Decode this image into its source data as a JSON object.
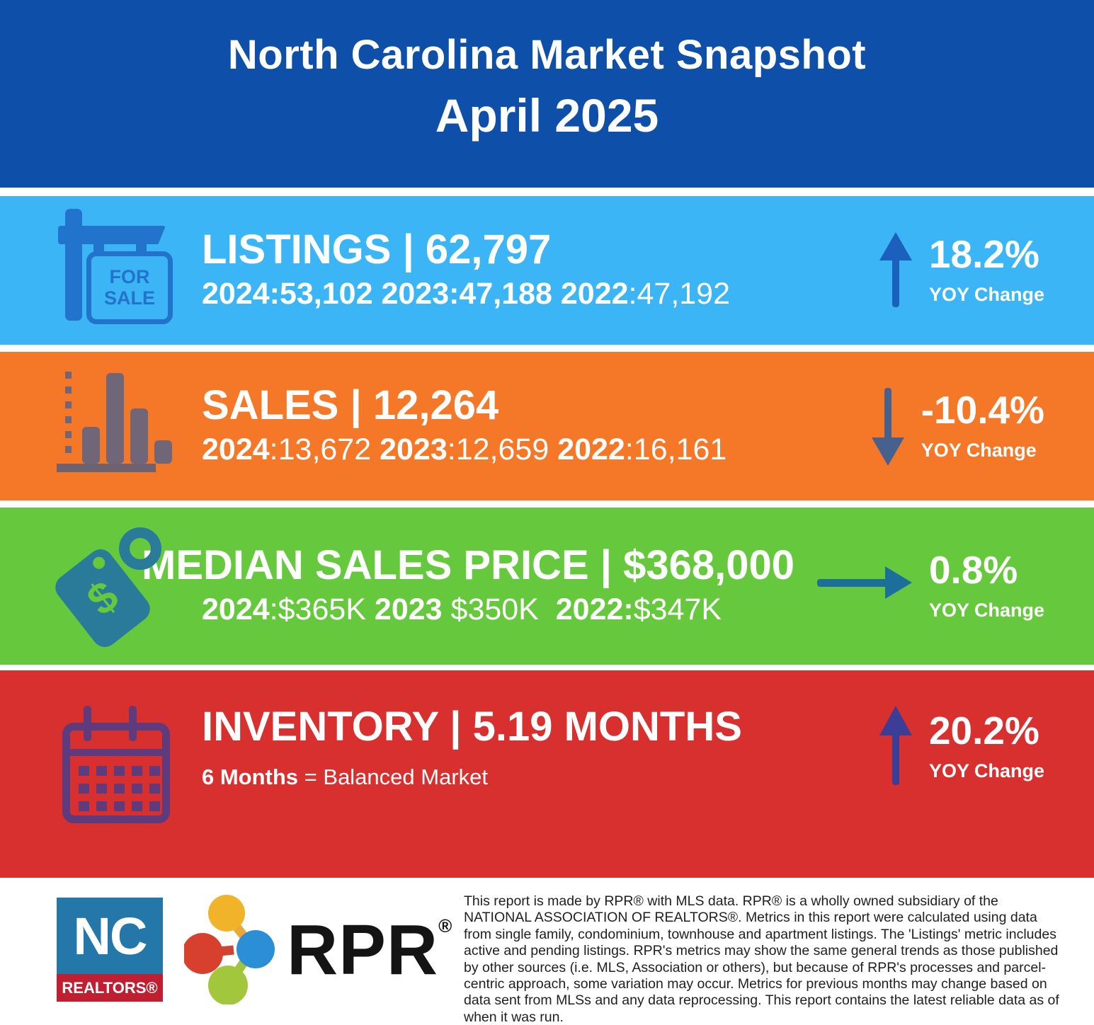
{
  "colors": {
    "header_bg": "#0e4fa9",
    "listings_bg": "#3cb5f6",
    "sales_bg": "#f57728",
    "median_bg": "#66c93d",
    "inventory_bg": "#d8302f",
    "listings_arrow": "#1c60bd",
    "sales_arrow": "#47618e",
    "median_arrow": "#1d6f9b",
    "inventory_arrow": "#3c3e96",
    "nc_logo_blue": "#2478a9",
    "nc_logo_red": "#c01f32"
  },
  "header": {
    "title": "North Carolina Market Snapshot",
    "subtitle": "April 2025"
  },
  "bands": [
    {
      "name": "Listings",
      "icon": "for-sale-sign",
      "icon_label": "FOR SALE",
      "title": "LISTINGS | 62,797",
      "history": [
        {
          "text": "2024:53,102 2023:47,188 2022",
          "bold": true
        },
        {
          "text": ":47,192",
          "bold": false
        }
      ],
      "yoy": {
        "value": "18.2%",
        "label": "YOY Change",
        "direction": "up"
      }
    },
    {
      "name": "Sales",
      "icon": "bar-chart",
      "title": "SALES | 12,264",
      "history": [
        {
          "text": "2024",
          "bold": true
        },
        {
          "text": ":13,672 ",
          "bold": false
        },
        {
          "text": "2023",
          "bold": true
        },
        {
          "text": ":12,659 ",
          "bold": false
        },
        {
          "text": "2022",
          "bold": true
        },
        {
          "text": ":16,161",
          "bold": false
        }
      ],
      "yoy": {
        "value": "-10.4%",
        "label": "YOY Change",
        "direction": "down"
      }
    },
    {
      "name": "Median Sales Price",
      "icon": "price-tag",
      "icon_label": "$",
      "title": "MEDIAN SALES PRICE | $368,000",
      "history": [
        {
          "text": "2024",
          "bold": true
        },
        {
          "text": ":$365K ",
          "bold": false
        },
        {
          "text": "2023",
          "bold": true
        },
        {
          "text": " $350K  ",
          "bold": false
        },
        {
          "text": "2022:",
          "bold": true
        },
        {
          "text": "$347K",
          "bold": false
        }
      ],
      "yoy": {
        "value": "0.8%",
        "label": "YOY Change",
        "direction": "right"
      }
    },
    {
      "name": "Inventory",
      "icon": "calendar",
      "title": "INVENTORY | 5.19 MONTHS",
      "history": [
        {
          "text": "6 Months",
          "bold": true
        },
        {
          "text": " = Balanced Market",
          "bold": false
        }
      ],
      "yoy": {
        "value": "20.2%",
        "label": "YOY Change",
        "direction": "up"
      }
    }
  ],
  "footer": {
    "nc_logo": {
      "top": "NC",
      "bottom": "REALTORS®"
    },
    "rpr_logo": {
      "text": "RPR",
      "registered": "®"
    },
    "disclaimer": "This report is made by RPR® with MLS data. RPR® is a wholly owned subsidiary of the NATIONAL ASSOCIATION OF REALTORS®. Metrics in this report were calculated using data from single family, condominium, townhouse and apartment listings. The 'Listings' metric includes active and pending listings. RPR's metrics may show the same general trends as those published by other sources (i.e. MLS, Association or others), but because of RPR's processes and parcel-centric approach, some variation may occur. Metrics for previous months may change based on data sent from MLSs and any data reprocessing. This report contains the latest reliable data as of when it was run."
  }
}
